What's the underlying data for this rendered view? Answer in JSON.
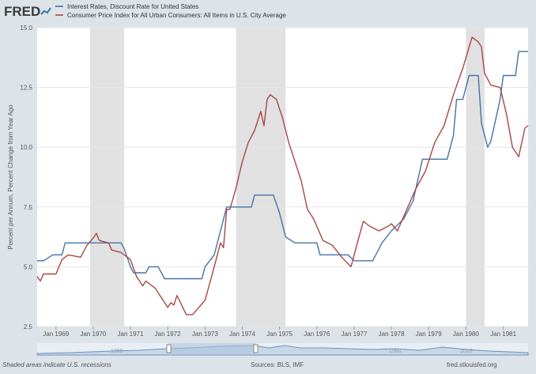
{
  "header": {
    "logo_text": "FRED",
    "logo_accent_color": "#2f74b5",
    "logo_text_color": "#3b3b3b"
  },
  "footer": {
    "recession_note": "Shaded areas indicate U.S. recessions",
    "sources": "Sources: BLS, IMF",
    "site": "fred.stlouisfed.org"
  },
  "navigator": {
    "labels": [
      "1960",
      "1980",
      "2010"
    ]
  },
  "colors": {
    "background": "#dce3e9",
    "plot_background": "#ffffff",
    "recession_shade": "#e1e1e1",
    "grid": "#e6e6e6",
    "axis_text": "#555555"
  },
  "chart_data": {
    "type": "line",
    "ylabel": "Percent per Annum, Percent Change from Year Ago",
    "ylim": [
      2.5,
      15.0
    ],
    "y_ticks": [
      "2.5",
      "5.0",
      "7.5",
      "10.0",
      "12.5",
      "15.0"
    ],
    "x_range": [
      "1968-07-01",
      "1981-09-01"
    ],
    "x_ticks": [
      {
        "label": "Jan 1969",
        "date": "1969-01-01"
      },
      {
        "label": "Jan 1970",
        "date": "1970-01-01"
      },
      {
        "label": "Jan 1971",
        "date": "1971-01-01"
      },
      {
        "label": "Jan 1972",
        "date": "1972-01-01"
      },
      {
        "label": "Jan 1973",
        "date": "1973-01-01"
      },
      {
        "label": "Jan 1974",
        "date": "1974-01-01"
      },
      {
        "label": "Jan 1975",
        "date": "1975-01-01"
      },
      {
        "label": "Jan 1976",
        "date": "1976-01-01"
      },
      {
        "label": "Jan 1977",
        "date": "1977-01-01"
      },
      {
        "label": "Jan 1978",
        "date": "1978-01-01"
      },
      {
        "label": "Jan 1979",
        "date": "1979-01-01"
      },
      {
        "label": "Jan 1980",
        "date": "1980-01-01"
      },
      {
        "label": "Jan 1981",
        "date": "1981-01-01"
      }
    ],
    "grid": true,
    "legend_placement": "top-left, above plot",
    "recessions": [
      {
        "start": "1969-12-01",
        "end": "1970-11-01"
      },
      {
        "start": "1973-11-01",
        "end": "1975-03-01"
      },
      {
        "start": "1980-01-01",
        "end": "1980-07-01"
      }
    ],
    "series": [
      {
        "name": "Interest Rates, Discount Rate for United States",
        "color": "#4572a7",
        "points": [
          [
            "1968-07-01",
            5.25
          ],
          [
            "1968-09-01",
            5.25
          ],
          [
            "1968-12-01",
            5.5
          ],
          [
            "1969-03-01",
            5.5
          ],
          [
            "1969-04-01",
            6.0
          ],
          [
            "1969-12-01",
            6.0
          ],
          [
            "1970-10-01",
            6.0
          ],
          [
            "1970-11-01",
            5.75
          ],
          [
            "1971-01-01",
            5.0
          ],
          [
            "1971-02-01",
            4.75
          ],
          [
            "1971-06-01",
            4.75
          ],
          [
            "1971-07-01",
            5.0
          ],
          [
            "1971-10-01",
            5.0
          ],
          [
            "1971-12-01",
            4.5
          ],
          [
            "1972-12-01",
            4.5
          ],
          [
            "1973-01-01",
            5.0
          ],
          [
            "1973-04-01",
            5.5
          ],
          [
            "1973-06-01",
            6.5
          ],
          [
            "1973-08-01",
            7.5
          ],
          [
            "1974-04-01",
            7.5
          ],
          [
            "1974-05-01",
            8.0
          ],
          [
            "1974-11-01",
            8.0
          ],
          [
            "1975-01-01",
            7.25
          ],
          [
            "1975-03-01",
            6.25
          ],
          [
            "1975-06-01",
            6.0
          ],
          [
            "1976-01-01",
            6.0
          ],
          [
            "1976-02-01",
            5.5
          ],
          [
            "1976-11-01",
            5.5
          ],
          [
            "1977-01-01",
            5.25
          ],
          [
            "1977-07-01",
            5.25
          ],
          [
            "1977-09-01",
            5.75
          ],
          [
            "1977-10-01",
            6.0
          ],
          [
            "1978-01-01",
            6.5
          ],
          [
            "1978-05-01",
            7.0
          ],
          [
            "1978-08-01",
            7.75
          ],
          [
            "1978-11-01",
            9.5
          ],
          [
            "1979-07-01",
            9.5
          ],
          [
            "1979-09-01",
            10.5
          ],
          [
            "1979-10-01",
            12.0
          ],
          [
            "1979-12-01",
            12.0
          ],
          [
            "1980-02-01",
            13.0
          ],
          [
            "1980-05-01",
            13.0
          ],
          [
            "1980-06-01",
            11.0
          ],
          [
            "1980-08-01",
            10.0
          ],
          [
            "1980-09-01",
            10.25
          ],
          [
            "1980-12-01",
            12.0
          ],
          [
            "1981-01-01",
            13.0
          ],
          [
            "1981-05-01",
            13.0
          ],
          [
            "1981-06-01",
            14.0
          ],
          [
            "1981-09-01",
            14.0
          ]
        ]
      },
      {
        "name": "Consumer Price Index for All Urban Consumers: All Items in U.S. City Average",
        "color": "#aa4643",
        "points": [
          [
            "1968-07-01",
            4.6
          ],
          [
            "1968-08-01",
            4.4
          ],
          [
            "1968-09-01",
            4.7
          ],
          [
            "1968-11-01",
            4.7
          ],
          [
            "1969-01-01",
            4.7
          ],
          [
            "1969-03-01",
            5.3
          ],
          [
            "1969-05-01",
            5.5
          ],
          [
            "1969-09-01",
            5.4
          ],
          [
            "1969-11-01",
            5.9
          ],
          [
            "1970-01-01",
            6.2
          ],
          [
            "1970-02-01",
            6.4
          ],
          [
            "1970-03-01",
            6.1
          ],
          [
            "1970-06-01",
            6.0
          ],
          [
            "1970-07-01",
            5.7
          ],
          [
            "1970-10-01",
            5.6
          ],
          [
            "1971-01-01",
            5.3
          ],
          [
            "1971-03-01",
            4.6
          ],
          [
            "1971-05-01",
            4.2
          ],
          [
            "1971-06-01",
            4.4
          ],
          [
            "1971-09-01",
            4.1
          ],
          [
            "1972-01-01",
            3.3
          ],
          [
            "1972-02-01",
            3.5
          ],
          [
            "1972-03-01",
            3.4
          ],
          [
            "1972-04-01",
            3.8
          ],
          [
            "1972-07-01",
            3.0
          ],
          [
            "1972-09-01",
            3.0
          ],
          [
            "1973-01-01",
            3.6
          ],
          [
            "1973-04-01",
            5.0
          ],
          [
            "1973-06-01",
            6.0
          ],
          [
            "1973-07-01",
            5.8
          ],
          [
            "1973-08-01",
            7.4
          ],
          [
            "1973-09-01",
            7.4
          ],
          [
            "1973-11-01",
            8.3
          ],
          [
            "1974-01-01",
            9.4
          ],
          [
            "1974-03-01",
            10.2
          ],
          [
            "1974-05-01",
            10.7
          ],
          [
            "1974-07-01",
            11.5
          ],
          [
            "1974-08-01",
            10.9
          ],
          [
            "1974-09-01",
            12.0
          ],
          [
            "1974-10-01",
            12.2
          ],
          [
            "1974-12-01",
            12.0
          ],
          [
            "1975-02-01",
            11.2
          ],
          [
            "1975-04-01",
            10.2
          ],
          [
            "1975-06-01",
            9.4
          ],
          [
            "1975-08-01",
            8.6
          ],
          [
            "1975-10-01",
            7.4
          ],
          [
            "1975-12-01",
            7.0
          ],
          [
            "1976-03-01",
            6.1
          ],
          [
            "1976-06-01",
            5.9
          ],
          [
            "1976-09-01",
            5.4
          ],
          [
            "1976-12-01",
            5.0
          ],
          [
            "1977-02-01",
            6.0
          ],
          [
            "1977-04-01",
            6.9
          ],
          [
            "1977-06-01",
            6.7
          ],
          [
            "1977-09-01",
            6.5
          ],
          [
            "1977-12-01",
            6.7
          ],
          [
            "1978-01-01",
            6.8
          ],
          [
            "1978-03-01",
            6.5
          ],
          [
            "1978-06-01",
            7.4
          ],
          [
            "1978-09-01",
            8.3
          ],
          [
            "1978-12-01",
            9.0
          ],
          [
            "1979-03-01",
            10.2
          ],
          [
            "1979-06-01",
            10.9
          ],
          [
            "1979-09-01",
            12.2
          ],
          [
            "1979-12-01",
            13.3
          ],
          [
            "1980-03-01",
            14.6
          ],
          [
            "1980-05-01",
            14.4
          ],
          [
            "1980-06-01",
            14.2
          ],
          [
            "1980-07-01",
            13.1
          ],
          [
            "1980-09-01",
            12.6
          ],
          [
            "1980-12-01",
            12.5
          ],
          [
            "1981-02-01",
            11.4
          ],
          [
            "1981-04-01",
            10.0
          ],
          [
            "1981-06-01",
            9.6
          ],
          [
            "1981-08-01",
            10.8
          ],
          [
            "1981-09-01",
            10.9
          ]
        ]
      }
    ]
  }
}
